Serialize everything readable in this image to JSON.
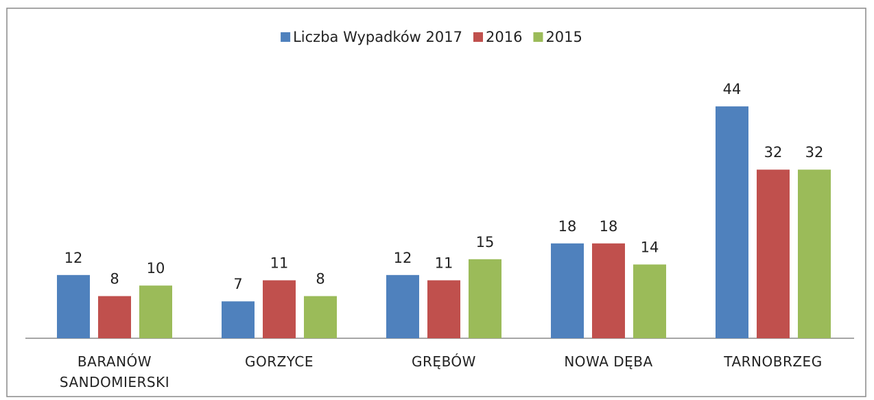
{
  "chart_data": {
    "type": "bar",
    "categories": [
      "BARANÓW SANDOMIERSKI",
      "GORZYCE",
      "GRĘBÓW",
      "NOWA DĘBA",
      "TARNOBRZEG"
    ],
    "series": [
      {
        "name": "Liczba Wypadków 2017",
        "color": "#4f81bd",
        "values": [
          12,
          7,
          12,
          18,
          44
        ]
      },
      {
        "name": "2016",
        "color": "#c0504d",
        "values": [
          8,
          11,
          11,
          18,
          32
        ]
      },
      {
        "name": "2015",
        "color": "#9bbb59",
        "values": [
          10,
          8,
          15,
          14,
          32
        ]
      }
    ],
    "legend": "top"
  }
}
